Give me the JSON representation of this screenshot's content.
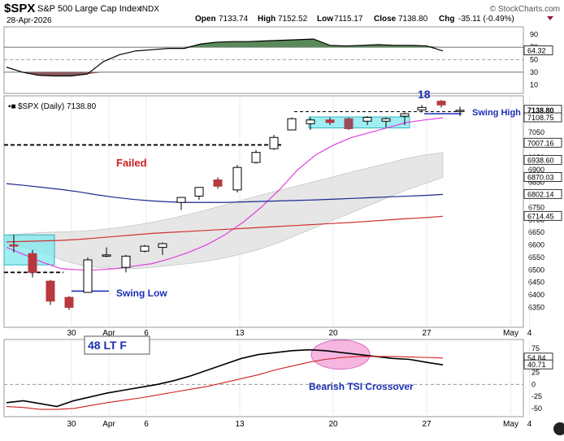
{
  "header": {
    "symbol": "$SPX",
    "name": "S&P 500 Large Cap Index",
    "exchange": "INDX",
    "date": "28-Apr-2026",
    "watermark": "© StockCharts.com",
    "ohlc": {
      "open_label": "Open",
      "open": "7133.74",
      "high_label": "High",
      "high": "7152.52",
      "low_label": "Low",
      "low": "7115.17",
      "close_label": "Close",
      "close": "7138.80",
      "chg_label": "Chg",
      "chg": "-35.11 (-0.49%)"
    }
  },
  "colors": {
    "up_candle": "#ffffff",
    "down_candle": "#b8383f",
    "dark_red_candle": "#9e4a5a",
    "ma_short": "#e040e0",
    "ma_mid": "#1a2a8f",
    "ma_long": "#d03030",
    "tsi_line": "#000000",
    "tsi_signal": "#d02020",
    "rsi_fill_high": "#5a8a5a",
    "rsi_fill_low": "#8a5a5a",
    "box_fill": "#7fe8ee",
    "annotation_blue": "#1b2fb5",
    "annotation_red": "#cc1f1f"
  },
  "chart_data": [
    {
      "type": "area",
      "panel": "rsi",
      "ylim": [
        0,
        100
      ],
      "yticks": [
        10,
        30,
        50,
        70,
        90
      ],
      "ref_lines": [
        70,
        30
      ],
      "last_value_label": "64.32",
      "series": [
        {
          "values": [
            38,
            30,
            25,
            24,
            24,
            27,
            47,
            58,
            64,
            66,
            68,
            68,
            75,
            78,
            79,
            79,
            80,
            81,
            82,
            83,
            73,
            72,
            73,
            74,
            73,
            73,
            72,
            64
          ]
        }
      ]
    },
    {
      "type": "candlestick",
      "panel": "price",
      "legend": "$SPX (Daily) 7138.80",
      "ylim": [
        6280,
        7190
      ],
      "yticks": [
        6350,
        6400,
        6450,
        6500,
        6550,
        6600,
        6650,
        6700,
        6750,
        6800,
        6850,
        6900,
        6950,
        7000,
        7050,
        7100
      ],
      "x_labels": [
        {
          "label": "30",
          "index": 3
        },
        {
          "label": "Apr",
          "index": 5
        },
        {
          "label": "6",
          "index": 7
        },
        {
          "label": "13",
          "index": 12
        },
        {
          "label": "20",
          "index": 17
        },
        {
          "label": "27",
          "index": 22
        },
        {
          "label": "May",
          "index": 26.5
        },
        {
          "label": "4",
          "index": 27.5
        }
      ],
      "candles": [
        {
          "o": 6600,
          "h": 6640,
          "l": 6570,
          "c": 6595
        },
        {
          "o": 6565,
          "h": 6580,
          "l": 6470,
          "c": 6490
        },
        {
          "o": 6455,
          "h": 6460,
          "l": 6360,
          "c": 6375
        },
        {
          "o": 6390,
          "h": 6395,
          "l": 6340,
          "c": 6350
        },
        {
          "o": 6410,
          "h": 6550,
          "l": 6410,
          "c": 6540
        },
        {
          "o": 6555,
          "h": 6590,
          "l": 6550,
          "c": 6560
        },
        {
          "o": 6510,
          "h": 6560,
          "l": 6490,
          "c": 6555
        },
        {
          "o": 6575,
          "h": 6600,
          "l": 6570,
          "c": 6595
        },
        {
          "o": 6590,
          "h": 6610,
          "l": 6560,
          "c": 6605
        },
        {
          "o": 6770,
          "h": 6790,
          "l": 6740,
          "c": 6790
        },
        {
          "o": 6795,
          "h": 6830,
          "l": 6780,
          "c": 6830
        },
        {
          "o": 6860,
          "h": 6870,
          "l": 6825,
          "c": 6835
        },
        {
          "o": 6820,
          "h": 6920,
          "l": 6810,
          "c": 6910
        },
        {
          "o": 6930,
          "h": 6980,
          "l": 6925,
          "c": 6970
        },
        {
          "o": 6985,
          "h": 7040,
          "l": 6980,
          "c": 7030
        },
        {
          "o": 7060,
          "h": 7110,
          "l": 7060,
          "c": 7105
        },
        {
          "o": 7085,
          "h": 7110,
          "l": 7060,
          "c": 7100
        },
        {
          "o": 7100,
          "h": 7110,
          "l": 7080,
          "c": 7090
        },
        {
          "o": 7105,
          "h": 7110,
          "l": 7060,
          "c": 7065
        },
        {
          "o": 7095,
          "h": 7115,
          "l": 7080,
          "c": 7110
        },
        {
          "o": 7095,
          "h": 7110,
          "l": 7070,
          "c": 7105
        },
        {
          "o": 7115,
          "h": 7130,
          "l": 7080,
          "c": 7125
        },
        {
          "o": 7140,
          "h": 7160,
          "l": 7130,
          "c": 7150
        },
        {
          "o": 7175,
          "h": 7180,
          "l": 7150,
          "c": 7160
        },
        {
          "o": 7133.74,
          "h": 7152.52,
          "l": 7115.17,
          "c": 7138.8
        }
      ],
      "series": [
        {
          "values": [
            6590,
            6560,
            6530,
            6505,
            6500,
            6500,
            6505,
            6515,
            6525,
            6545,
            6570,
            6600,
            6640,
            6690,
            6750,
            6820,
            6900,
            6960,
            7000,
            7030,
            7050,
            7070,
            7090,
            7100,
            7108.75
          ]
        },
        {
          "values": [
            6845,
            6838,
            6830,
            6822,
            6812,
            6800,
            6790,
            6782,
            6776,
            6772,
            6770,
            6770,
            6770,
            6772,
            6774,
            6776,
            6778,
            6780,
            6783,
            6786,
            6789,
            6792,
            6795,
            6798,
            6802.14
          ]
        },
        {
          "values": [
            6612,
            6614,
            6616,
            6618,
            6622,
            6628,
            6634,
            6640,
            6646,
            6650,
            6654,
            6658,
            6662,
            6666,
            6670,
            6674,
            6678,
            6682,
            6686,
            6690,
            6695,
            6700,
            6705,
            6709,
            6714.45
          ]
        },
        {
          "values": [
            6605,
            6590,
            6570,
            6540,
            6520,
            6510,
            6505,
            6505,
            6510,
            6518,
            6525,
            6535,
            6548,
            6565,
            6585,
            6610,
            6640,
            6670,
            6700,
            6730,
            6760,
            6790,
            6820,
            6845,
            6870
          ]
        },
        {
          "values": [
            6640,
            6645,
            6650,
            6652,
            6655,
            6660,
            6668,
            6678,
            6690,
            6705,
            6722,
            6740,
            6760,
            6780,
            6800,
            6818,
            6836,
            6855,
            6873,
            6892,
            6910,
            6928,
            6946,
            6960,
            6970
          ]
        }
      ],
      "price_labels": [
        "7138.80",
        "7108.75",
        "7007.16",
        "6938.60",
        "6870.03",
        "6802.14",
        "6714.45"
      ]
    },
    {
      "type": "line",
      "panel": "tsi",
      "ylim": [
        -62,
        90
      ],
      "yticks": [
        -50,
        -25,
        0,
        25,
        50,
        75
      ],
      "x_labels": [
        {
          "label": "30",
          "index": 3
        },
        {
          "label": "Apr",
          "index": 5
        },
        {
          "label": "6",
          "index": 7
        },
        {
          "label": "13",
          "index": 12
        },
        {
          "label": "20",
          "index": 17
        },
        {
          "label": "27",
          "index": 22
        },
        {
          "label": "May",
          "index": 26.5
        },
        {
          "label": "4",
          "index": 27.5
        }
      ],
      "series": [
        {
          "values": [
            -38,
            -34,
            -40,
            -46,
            -34,
            -26,
            -18,
            -12,
            -6,
            0,
            8,
            18,
            30,
            42,
            54,
            62,
            66,
            70,
            72,
            70,
            66,
            62,
            58,
            54,
            52,
            46,
            40.71
          ]
        },
        {
          "values": [
            -46,
            -48,
            -52,
            -52,
            -50,
            -44,
            -38,
            -33,
            -28,
            -22,
            -16,
            -10,
            -4,
            4,
            12,
            20,
            30,
            38,
            46,
            52,
            56,
            58,
            58,
            58,
            57,
            56,
            54.84
          ]
        }
      ],
      "last_labels": [
        "54.84",
        "40.71"
      ]
    }
  ],
  "annotations": {
    "failed": "Failed",
    "swing_low": "Swing Low",
    "swing_high": "Swing High",
    "count_18": "18",
    "lt_f": "48 LT F",
    "tsi_cross": "Bearish TSI Crossover"
  }
}
